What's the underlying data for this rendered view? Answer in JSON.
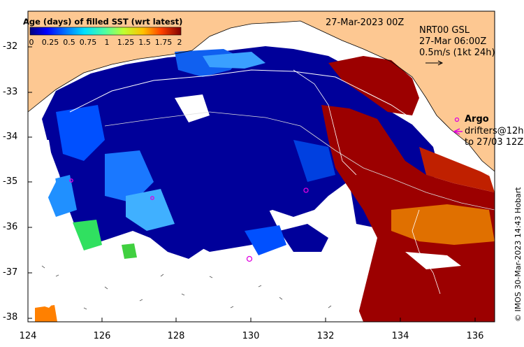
{
  "map": {
    "date": "27-Mar-2023 00Z",
    "current_info": [
      "NRT00 GSL",
      "27-Mar 06:00Z",
      "0.5m/s (1kt 24h)"
    ],
    "argo_label": "Argo",
    "drifters_label": [
      "drifters@12h",
      "to 27/03 12Z"
    ],
    "credit": "© IMOS 30-Mar-2023 14:43 Hobart",
    "x_ticks": [
      "124",
      "126",
      "128",
      "130",
      "132",
      "134",
      "136"
    ],
    "y_ticks": [
      "-32",
      "-33",
      "-34",
      "-35",
      "-36",
      "-37",
      "-38"
    ],
    "extent": {
      "lon_min": 124,
      "lon_max": 136.5,
      "lat_min": -38.1,
      "lat_max": -31.3
    },
    "colors": {
      "land": "#fdc892",
      "background": "#ffffff",
      "argo": "#e000e0",
      "colormap": [
        "#00007f",
        "#0000cd",
        "#0050ff",
        "#00a8ff",
        "#15ffe1",
        "#70ff86",
        "#c4ff33",
        "#ffd100",
        "#ff7300",
        "#e81000",
        "#7f0000"
      ]
    }
  },
  "legend": {
    "title": "Age (days) of filled SST (wrt latest)",
    "ticks": [
      "0",
      "0.25",
      "0.5",
      "0.75",
      "1",
      "1.25",
      "1.5",
      "1.75",
      "2"
    ],
    "range": [
      0,
      2
    ]
  }
}
